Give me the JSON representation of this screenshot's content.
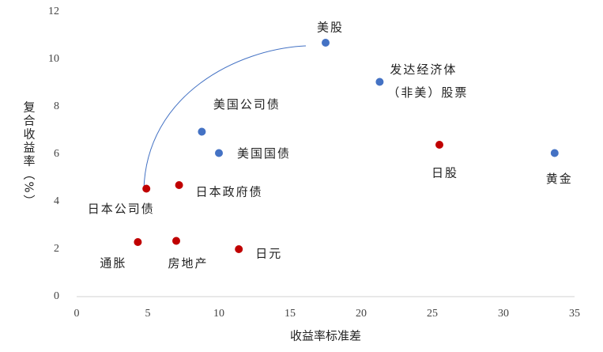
{
  "chart_data": {
    "type": "scatter",
    "x_label": "收益率标准差",
    "y_label": "复合收益率（%）",
    "xlim": [
      0,
      35
    ],
    "xticks": [
      0,
      5,
      10,
      15,
      20,
      25,
      30,
      35
    ],
    "ylim": [
      0,
      12
    ],
    "yticks": [
      0,
      2,
      4,
      6,
      8,
      10,
      12
    ],
    "series": [
      {
        "color": "#4472c4",
        "x": [
          17.5,
          21.3,
          8.8,
          10,
          33.6
        ],
        "values": [
          10.7,
          9.05,
          6.95,
          6.05,
          6.05
        ],
        "labels": [
          [
            "美股"
          ],
          [
            "发达经济体",
            "（非美）股票"
          ],
          [
            "美国公司债"
          ],
          [
            "美国国债"
          ],
          [
            "黄金"
          ]
        ]
      },
      {
        "color": "#c00000",
        "x": [
          25.5,
          4.9,
          7.2,
          4.3,
          7,
          11.4
        ],
        "values": [
          6.4,
          4.55,
          4.7,
          2.3,
          2.35,
          2.0
        ],
        "labels": [
          [
            "日股"
          ],
          [
            "日本公司债"
          ],
          [
            "日本政府债"
          ],
          [
            "通胀"
          ],
          [
            "房地产"
          ],
          [
            "日元"
          ]
        ]
      }
    ]
  }
}
